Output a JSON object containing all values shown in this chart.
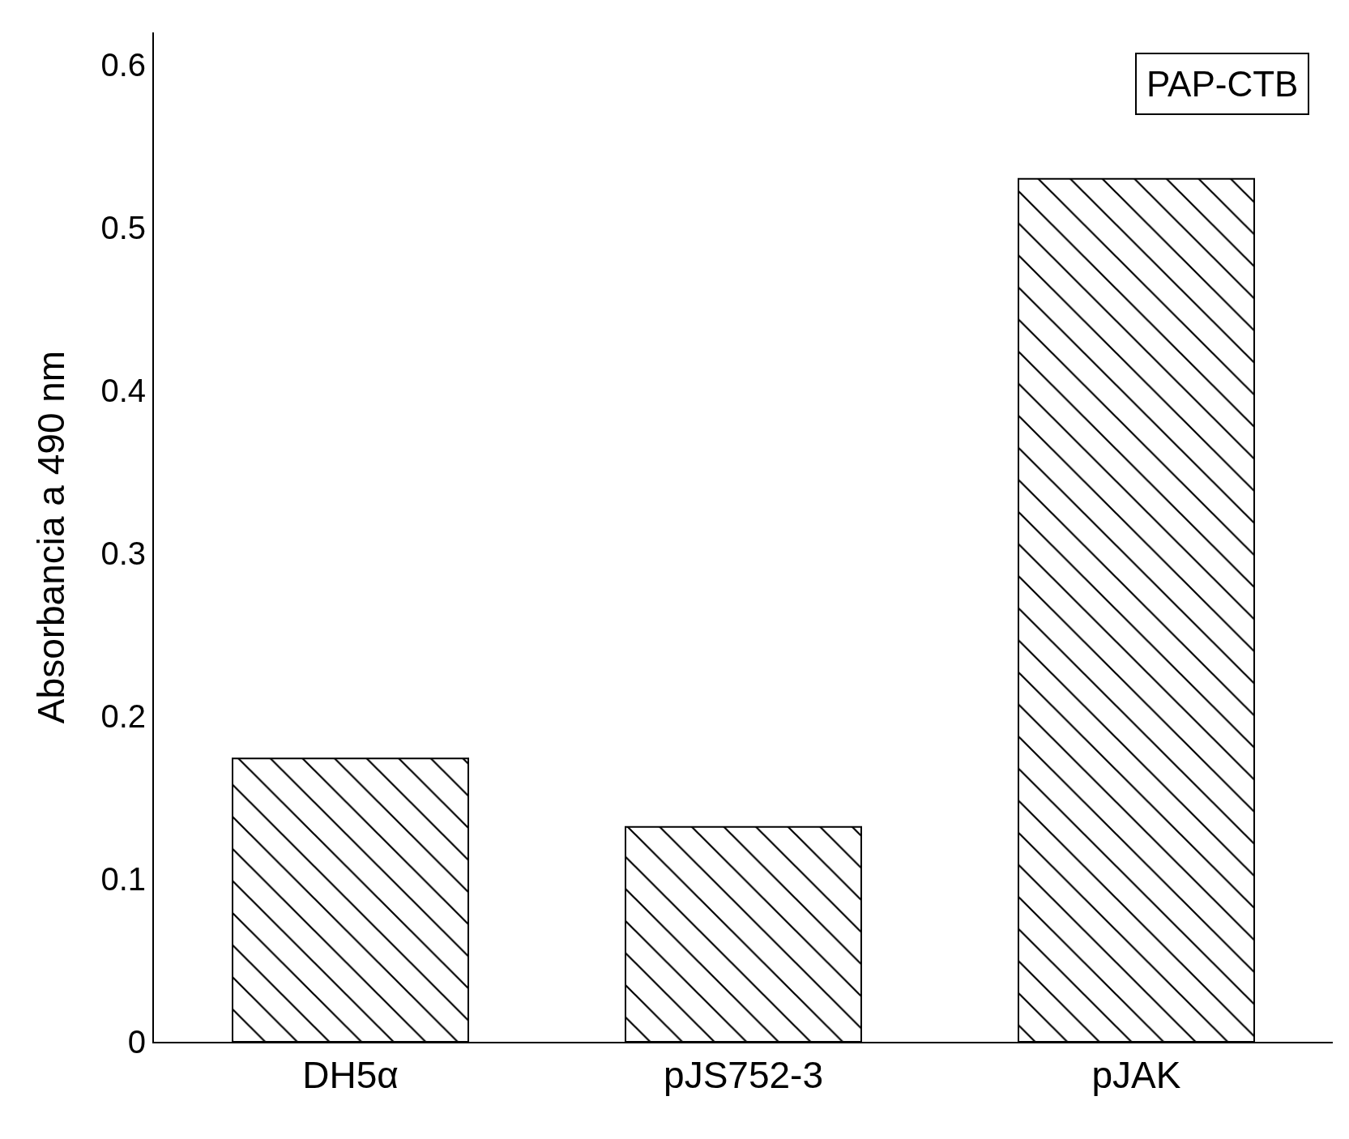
{
  "chart_data": {
    "type": "bar",
    "ylabel": "Absorbancia a 490 nm",
    "categories": [
      "DH5α",
      "pJS752-3",
      "pJAK"
    ],
    "values": [
      0.174,
      0.132,
      0.53
    ],
    "color": "#000000",
    "ylim": [
      0,
      0.62
    ],
    "yticks": [
      0,
      0.1,
      0.2,
      0.3,
      0.4,
      0.5,
      0.6
    ],
    "grid": false,
    "annotations": [
      "PAP-CTB"
    ]
  }
}
